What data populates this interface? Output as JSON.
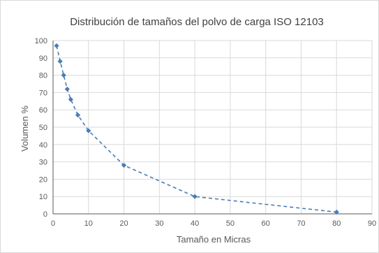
{
  "chart_data": {
    "type": "scatter",
    "title": "Distribución de tamaños del polvo de carga ISO 12103",
    "xlabel": "Tamaño en Micras",
    "ylabel": "Volumen %",
    "xlim": [
      0,
      90
    ],
    "ylim": [
      0,
      100
    ],
    "xticks": [
      "0",
      "10",
      "20",
      "30",
      "40",
      "50",
      "60",
      "70",
      "80",
      "90"
    ],
    "yticks": [
      "0",
      "10",
      "20",
      "30",
      "40",
      "50",
      "60",
      "70",
      "80",
      "90",
      "100"
    ],
    "grid": true,
    "line_style": "dashed",
    "marker": "diamond",
    "colors": {
      "series": "#4a7db5",
      "grid": "#d9d9d9",
      "axis": "#595959"
    },
    "series": [
      {
        "x": [
          1,
          2,
          3,
          4,
          5,
          7,
          10,
          20,
          40,
          80
        ],
        "y": [
          97,
          88,
          80,
          72,
          66,
          57,
          48,
          28,
          10,
          1
        ]
      }
    ]
  }
}
